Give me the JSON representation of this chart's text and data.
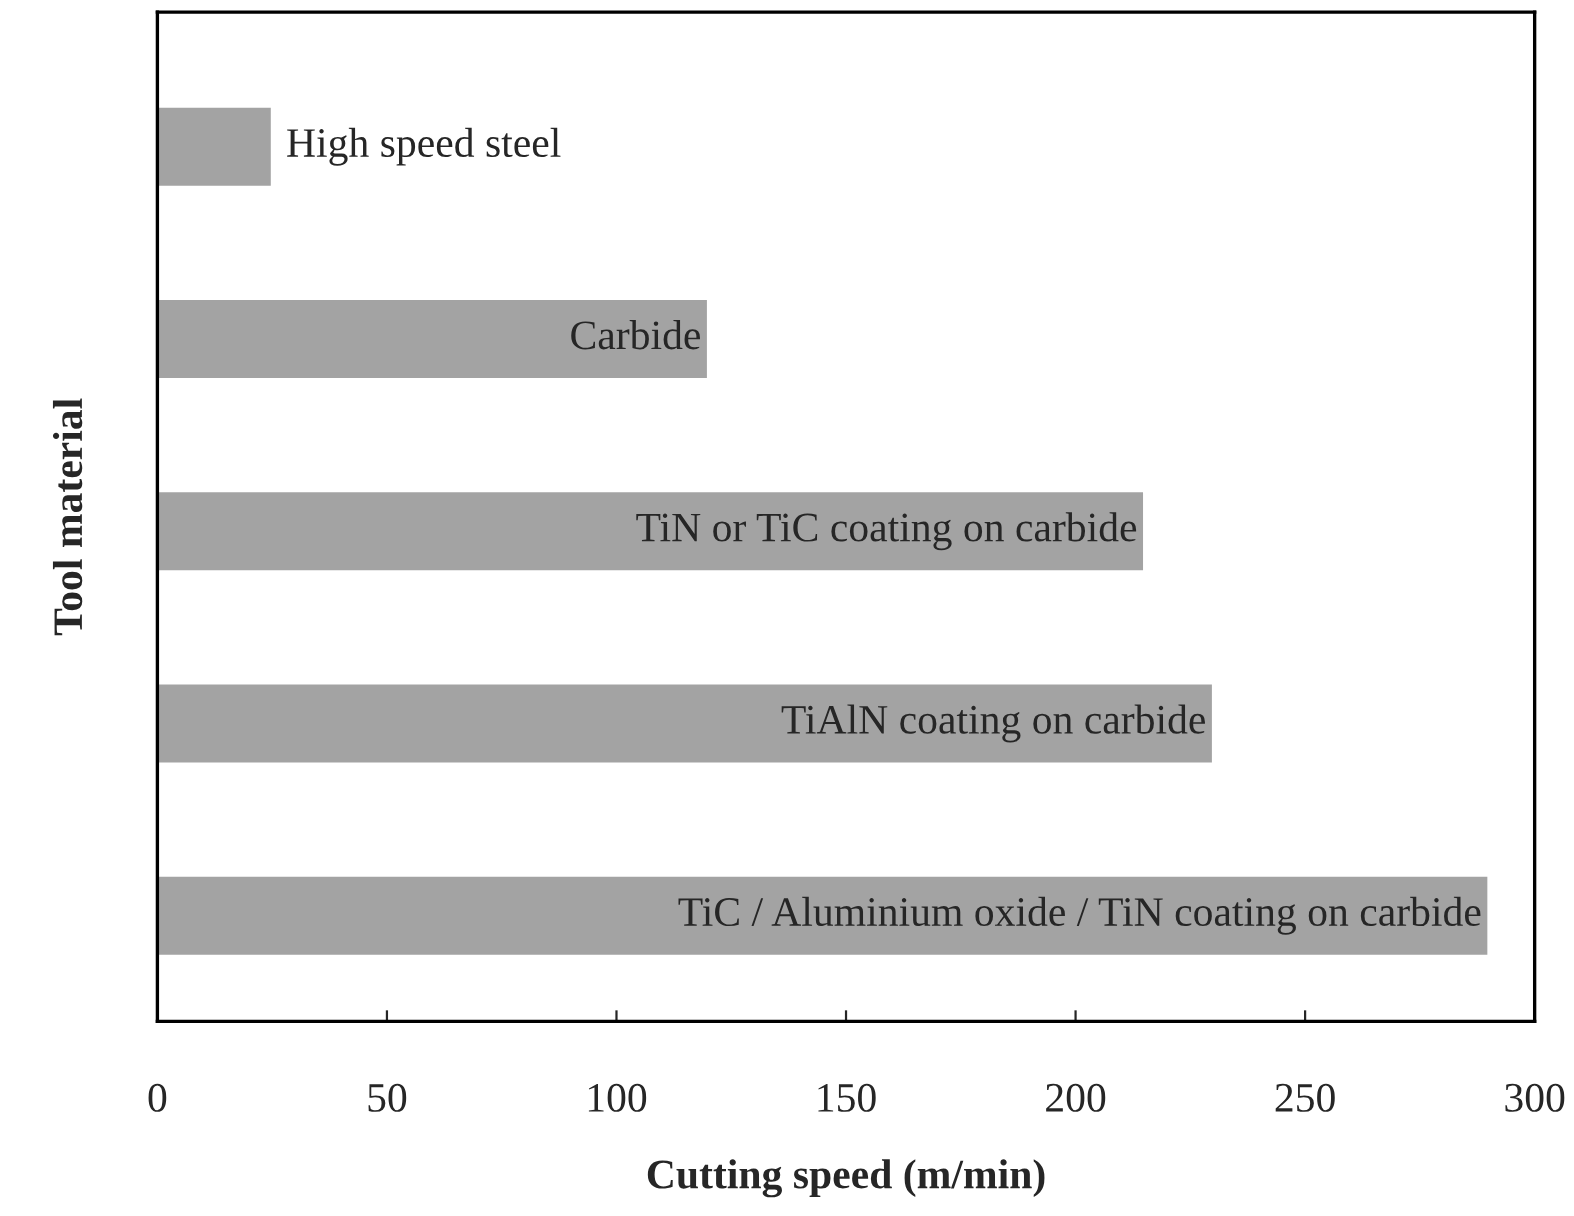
{
  "chart_data": {
    "type": "bar",
    "orientation": "horizontal",
    "xlabel": "Cutting speed (m/min)",
    "ylabel": "Tool material",
    "categories": [
      "High speed steel",
      "Carbide",
      "TiN or TiC coating on carbide",
      "TiAlN coating on carbide",
      "TiC / Aluminium oxide / TiN coating on carbide"
    ],
    "values": [
      25,
      120,
      215,
      230,
      290
    ],
    "color": "#a3a3a3",
    "xlim": [
      0,
      300
    ],
    "xticks": [
      0,
      50,
      100,
      150,
      200,
      250,
      300
    ],
    "tick_labels": "x",
    "grid": false,
    "legend": false
  }
}
